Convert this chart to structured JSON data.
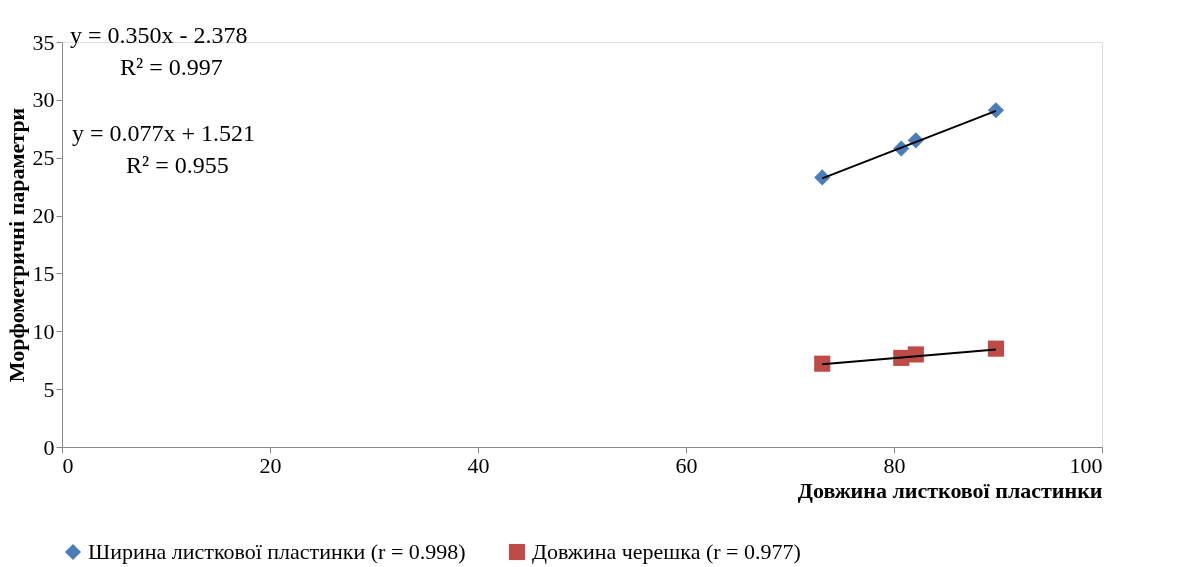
{
  "chart_data": {
    "type": "scatter",
    "xlabel": "Довжина листкової пластинки",
    "ylabel": "Морфометричні параметри",
    "xlim": [
      0,
      100
    ],
    "xticks": [
      0,
      20,
      40,
      60,
      80,
      100
    ],
    "ylim": [
      0,
      35
    ],
    "yticks": [
      0,
      5,
      10,
      15,
      20,
      25,
      30,
      35
    ],
    "grid": false,
    "legend": "bottom",
    "series": [
      {
        "name": "Ширина листкової пластинки (r = 0.998)",
        "color": "#4a7ebb",
        "marker": "diamond",
        "x": [
          73.1,
          80.7,
          82.1,
          89.8
        ],
        "values": [
          23.3,
          25.8,
          26.5,
          29.1
        ]
      },
      {
        "name": "Довжина черешка (r = 0.977)",
        "color": "#be4b48",
        "marker": "square",
        "x": [
          73.1,
          80.7,
          82.1,
          89.8
        ],
        "values": [
          7.2,
          7.7,
          8.0,
          8.5
        ]
      },
      {
        "type": "line",
        "color": "#000000",
        "marker": "none",
        "x": [
          73.1,
          89.8
        ],
        "values": [
          23.21,
          29.05
        ]
      },
      {
        "type": "line",
        "color": "#000000",
        "marker": "none",
        "x": [
          73.1,
          89.8
        ],
        "values": [
          7.15,
          8.43
        ]
      }
    ],
    "annotations": [
      "y = 0.350x - 2.378",
      "R² = 0.997",
      "y = 0.077x + 1.521",
      "R² = 0.955"
    ]
  }
}
